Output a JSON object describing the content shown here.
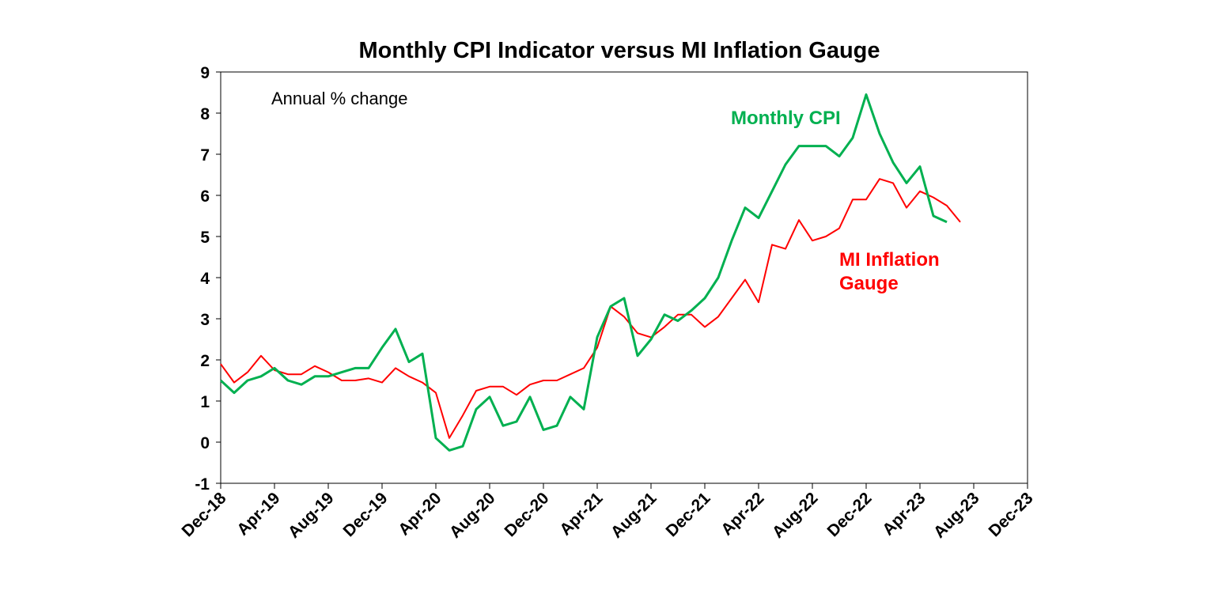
{
  "chart_data": {
    "type": "line",
    "title": "Monthly CPI Indicator versus MI Inflation Gauge",
    "annotation": "Annual % change",
    "xlabel": "",
    "ylabel": "",
    "ylim": [
      -1,
      9
    ],
    "y_ticks": [
      "-1",
      "0",
      "1",
      "2",
      "3",
      "4",
      "5",
      "6",
      "7",
      "8",
      "9"
    ],
    "x_tick_labels": [
      "Dec-18",
      "Apr-19",
      "Aug-19",
      "Dec-19",
      "Apr-20",
      "Aug-20",
      "Dec-20",
      "Apr-21",
      "Aug-21",
      "Dec-21",
      "Apr-22",
      "Aug-22",
      "Dec-22",
      "Apr-23",
      "Aug-23",
      "Dec-23"
    ],
    "x_start": "Dec-18",
    "x_months_span": 60,
    "grid": false,
    "series": [
      {
        "name": "Monthly CPI",
        "label_lines": [
          "Monthly CPI"
        ],
        "color": "#00b050",
        "values": [
          1.5,
          1.2,
          1.5,
          1.6,
          1.8,
          1.5,
          1.4,
          1.6,
          1.6,
          1.7,
          1.8,
          1.8,
          2.3,
          2.75,
          1.95,
          2.15,
          0.1,
          -0.2,
          -0.1,
          0.8,
          1.1,
          0.4,
          0.5,
          1.1,
          0.3,
          0.4,
          1.1,
          0.8,
          2.55,
          3.3,
          3.5,
          2.1,
          2.5,
          3.1,
          2.95,
          3.2,
          3.5,
          4.0,
          4.9,
          5.7,
          5.45,
          6.1,
          6.75,
          7.2,
          7.2,
          7.2,
          6.95,
          7.4,
          8.45,
          7.5,
          6.8,
          6.3,
          6.7,
          5.5,
          5.35
        ]
      },
      {
        "name": "MI Inflation Gauge",
        "label_lines": [
          "MI Inflation",
          "Gauge"
        ],
        "color": "#ff0000",
        "values": [
          1.9,
          1.45,
          1.7,
          2.1,
          1.75,
          1.65,
          1.65,
          1.85,
          1.7,
          1.5,
          1.5,
          1.55,
          1.45,
          1.8,
          1.6,
          1.45,
          1.2,
          0.1,
          0.65,
          1.25,
          1.35,
          1.35,
          1.15,
          1.4,
          1.5,
          1.5,
          1.65,
          1.8,
          2.3,
          3.3,
          3.05,
          2.65,
          2.55,
          2.8,
          3.1,
          3.1,
          2.8,
          3.05,
          3.5,
          3.95,
          3.4,
          4.8,
          4.7,
          5.4,
          4.9,
          5.0,
          5.2,
          5.9,
          5.9,
          6.4,
          6.3,
          5.7,
          6.1,
          5.95,
          5.75,
          5.35
        ]
      }
    ]
  }
}
